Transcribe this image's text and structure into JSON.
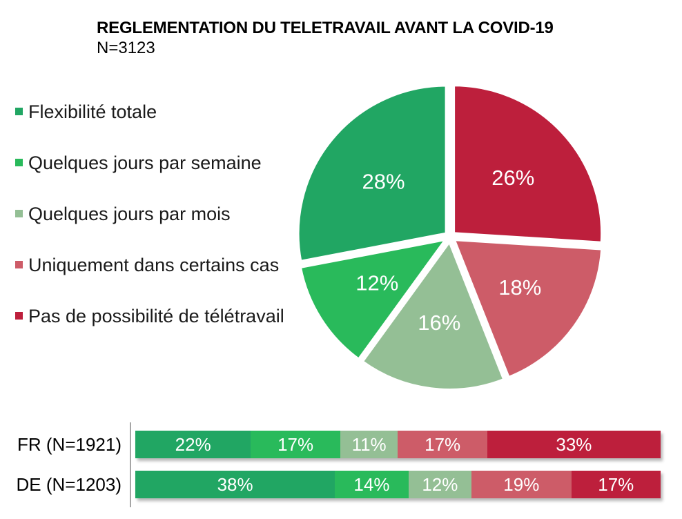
{
  "title": {
    "line1": "REGLEMENTATION DU TELETRAVAIL AVANT LA COVID-19",
    "line2": "N=3123"
  },
  "legend": [
    {
      "label": "Flexibilité totale",
      "color": "#21A663"
    },
    {
      "label": "Quelques jours par semaine",
      "color": "#29BA5B"
    },
    {
      "label": "Quelques jours par mois",
      "color": "#94BF95"
    },
    {
      "label": "Uniquement dans certains cas",
      "color": "#CD5C68"
    },
    {
      "label": "Pas de possibilité de télétravail",
      "color": "#BD1F3C"
    }
  ],
  "chart_data": [
    {
      "type": "pie",
      "title": "REGLEMENTATION DU TELETRAVAIL AVANT LA COVID-19",
      "subtitle": "N=3123",
      "start_angle_deg": 0,
      "direction": "clockwise",
      "value_label_format": "{value}%",
      "slices": [
        {
          "label": "Pas de possibilité de télétravail",
          "value": 26,
          "color": "#BD1F3C",
          "value_label": "26%"
        },
        {
          "label": "Uniquement dans certains cas",
          "value": 18,
          "color": "#CD5C68",
          "value_label": "18%"
        },
        {
          "label": "Quelques jours par mois",
          "value": 16,
          "color": "#94BF95",
          "value_label": "16%"
        },
        {
          "label": "Quelques jours par semaine",
          "value": 12,
          "color": "#29BA5B",
          "value_label": "12%"
        },
        {
          "label": "Flexibilité totale",
          "value": 28,
          "color": "#21A663",
          "value_label": "28%"
        }
      ]
    },
    {
      "type": "bar",
      "subtype": "stacked-horizontal",
      "xlim": [
        0,
        100
      ],
      "value_label_format": "{value}%",
      "categories": [
        "FR (N=1921)",
        "DE (N=1203)"
      ],
      "series": [
        {
          "name": "Flexibilité totale",
          "color": "#21A663",
          "values": [
            22,
            38
          ]
        },
        {
          "name": "Quelques jours par semaine",
          "color": "#29BA5B",
          "values": [
            17,
            14
          ]
        },
        {
          "name": "Quelques jours par mois",
          "color": "#94BF95",
          "values": [
            11,
            12
          ]
        },
        {
          "name": "Uniquement dans certains cas",
          "color": "#CD5C68",
          "values": [
            17,
            19
          ]
        },
        {
          "name": "Pas de possibilité de télétravail",
          "color": "#BD1F3C",
          "values": [
            33,
            17
          ]
        }
      ]
    }
  ]
}
